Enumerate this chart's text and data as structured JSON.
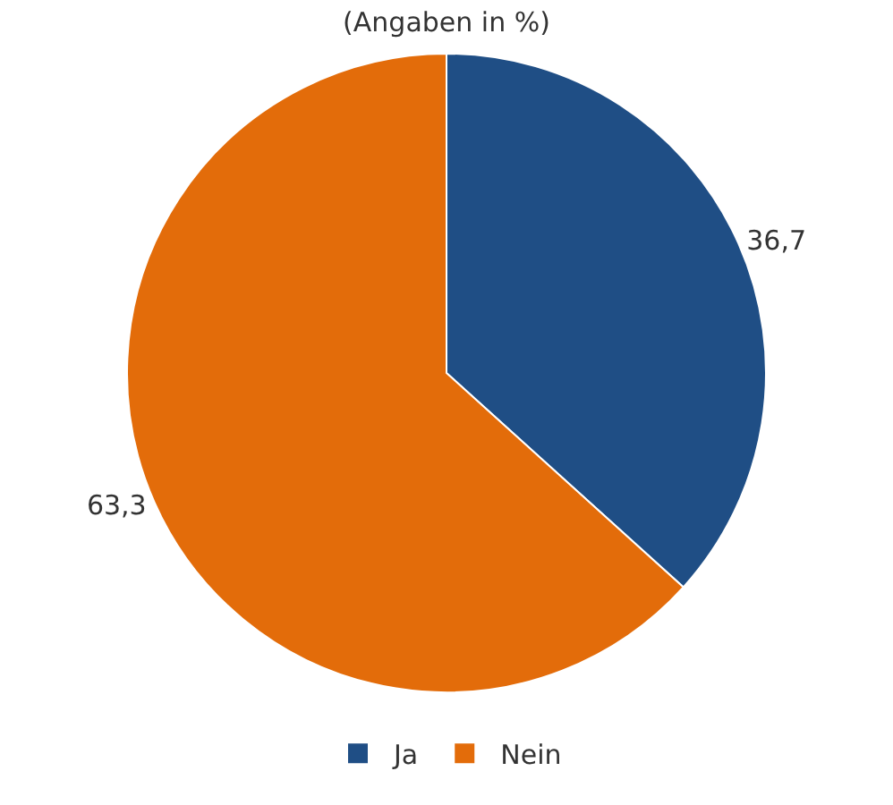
{
  "chart_data": {
    "type": "pie",
    "title": "(Angaben in %)",
    "categories": [
      "Ja",
      "Nein"
    ],
    "values": [
      36.7,
      63.3
    ],
    "colors": [
      "#1f4e85",
      "#e36c0a"
    ],
    "value_labels": [
      "36,7",
      "63,3"
    ],
    "legend": "bottom"
  }
}
